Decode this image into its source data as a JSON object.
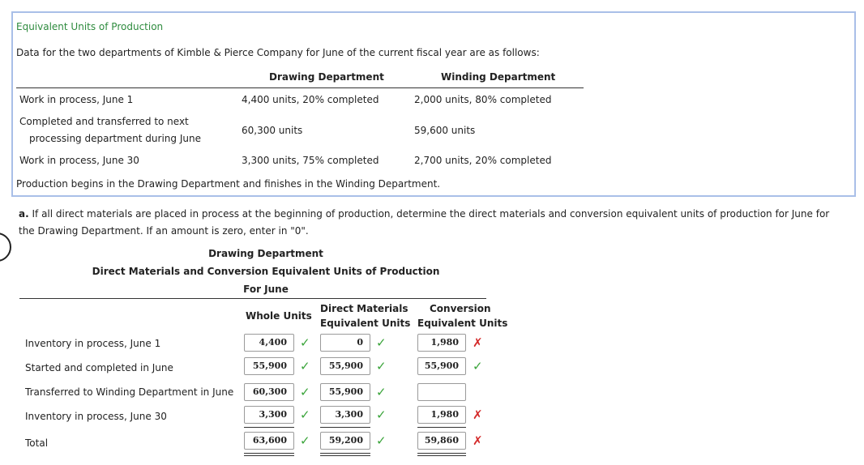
{
  "info_box": {
    "title": "Equivalent Units of Production",
    "intro": "Data for the two departments of Kimble & Pierce Company for June of the current fiscal year are as follows:",
    "columns": [
      "Drawing Department",
      "Winding Department"
    ],
    "rows": [
      {
        "label": "Work in process, June 1",
        "label2": "",
        "drawing": "4,400 units, 20% completed",
        "winding": "2,000 units, 80% completed"
      },
      {
        "label": "Completed and transferred to next",
        "label2": "processing department during June",
        "drawing": "60,300 units",
        "winding": "59,600 units"
      },
      {
        "label": "Work in process, June 30",
        "label2": "",
        "drawing": "3,300 units, 75% completed",
        "winding": "2,700 units, 20% completed"
      }
    ],
    "footer": "Production begins in the Drawing Department and finishes in the Winding Department."
  },
  "question": {
    "letter": "a.",
    "line1": "If all direct materials are placed in process at the beginning of production, determine the direct materials and conversion equivalent units of production for June for",
    "line2": "the Drawing Department. If an amount is zero, enter in \"0\"."
  },
  "schedule": {
    "title1": "Drawing Department",
    "title2": "Direct Materials and Conversion Equivalent Units of Production",
    "title3": "For June",
    "col_whole": "Whole Units",
    "col_dm_1": "Direct Materials",
    "col_dm_2": "Equivalent Units",
    "col_conv_1": "Conversion",
    "col_conv_2": "Equivalent Units",
    "rows": [
      {
        "label": "Inventory in process, June 1",
        "whole": "4,400",
        "whole_mark": "ok",
        "dm": "0",
        "dm_mark": "ok",
        "conv": "1,980",
        "conv_mark": "bad"
      },
      {
        "label": "Started and completed in June",
        "whole": "55,900",
        "whole_mark": "ok",
        "dm": "55,900",
        "dm_mark": "ok",
        "conv": "55,900",
        "conv_mark": "ok"
      },
      {
        "label": "Transferred to Winding Department in June",
        "whole": "60,300",
        "whole_mark": "ok",
        "dm": "55,900",
        "dm_mark": "ok",
        "conv": "",
        "conv_mark": ""
      },
      {
        "label": "Inventory in process, June 30",
        "whole": "3,300",
        "whole_mark": "ok",
        "dm": "3,300",
        "dm_mark": "ok",
        "conv": "1,980",
        "conv_mark": "bad"
      },
      {
        "label": "Total",
        "whole": "63,600",
        "whole_mark": "ok",
        "dm": "59,200",
        "dm_mark": "ok",
        "conv": "59,860",
        "conv_mark": "bad"
      }
    ]
  },
  "marks": {
    "ok": "✓",
    "bad": "✗"
  },
  "colors": {
    "ok": "#3aa43a",
    "bad": "#d42a2a",
    "title": "#2e8b3e",
    "box_border": "#a9bfe8"
  }
}
